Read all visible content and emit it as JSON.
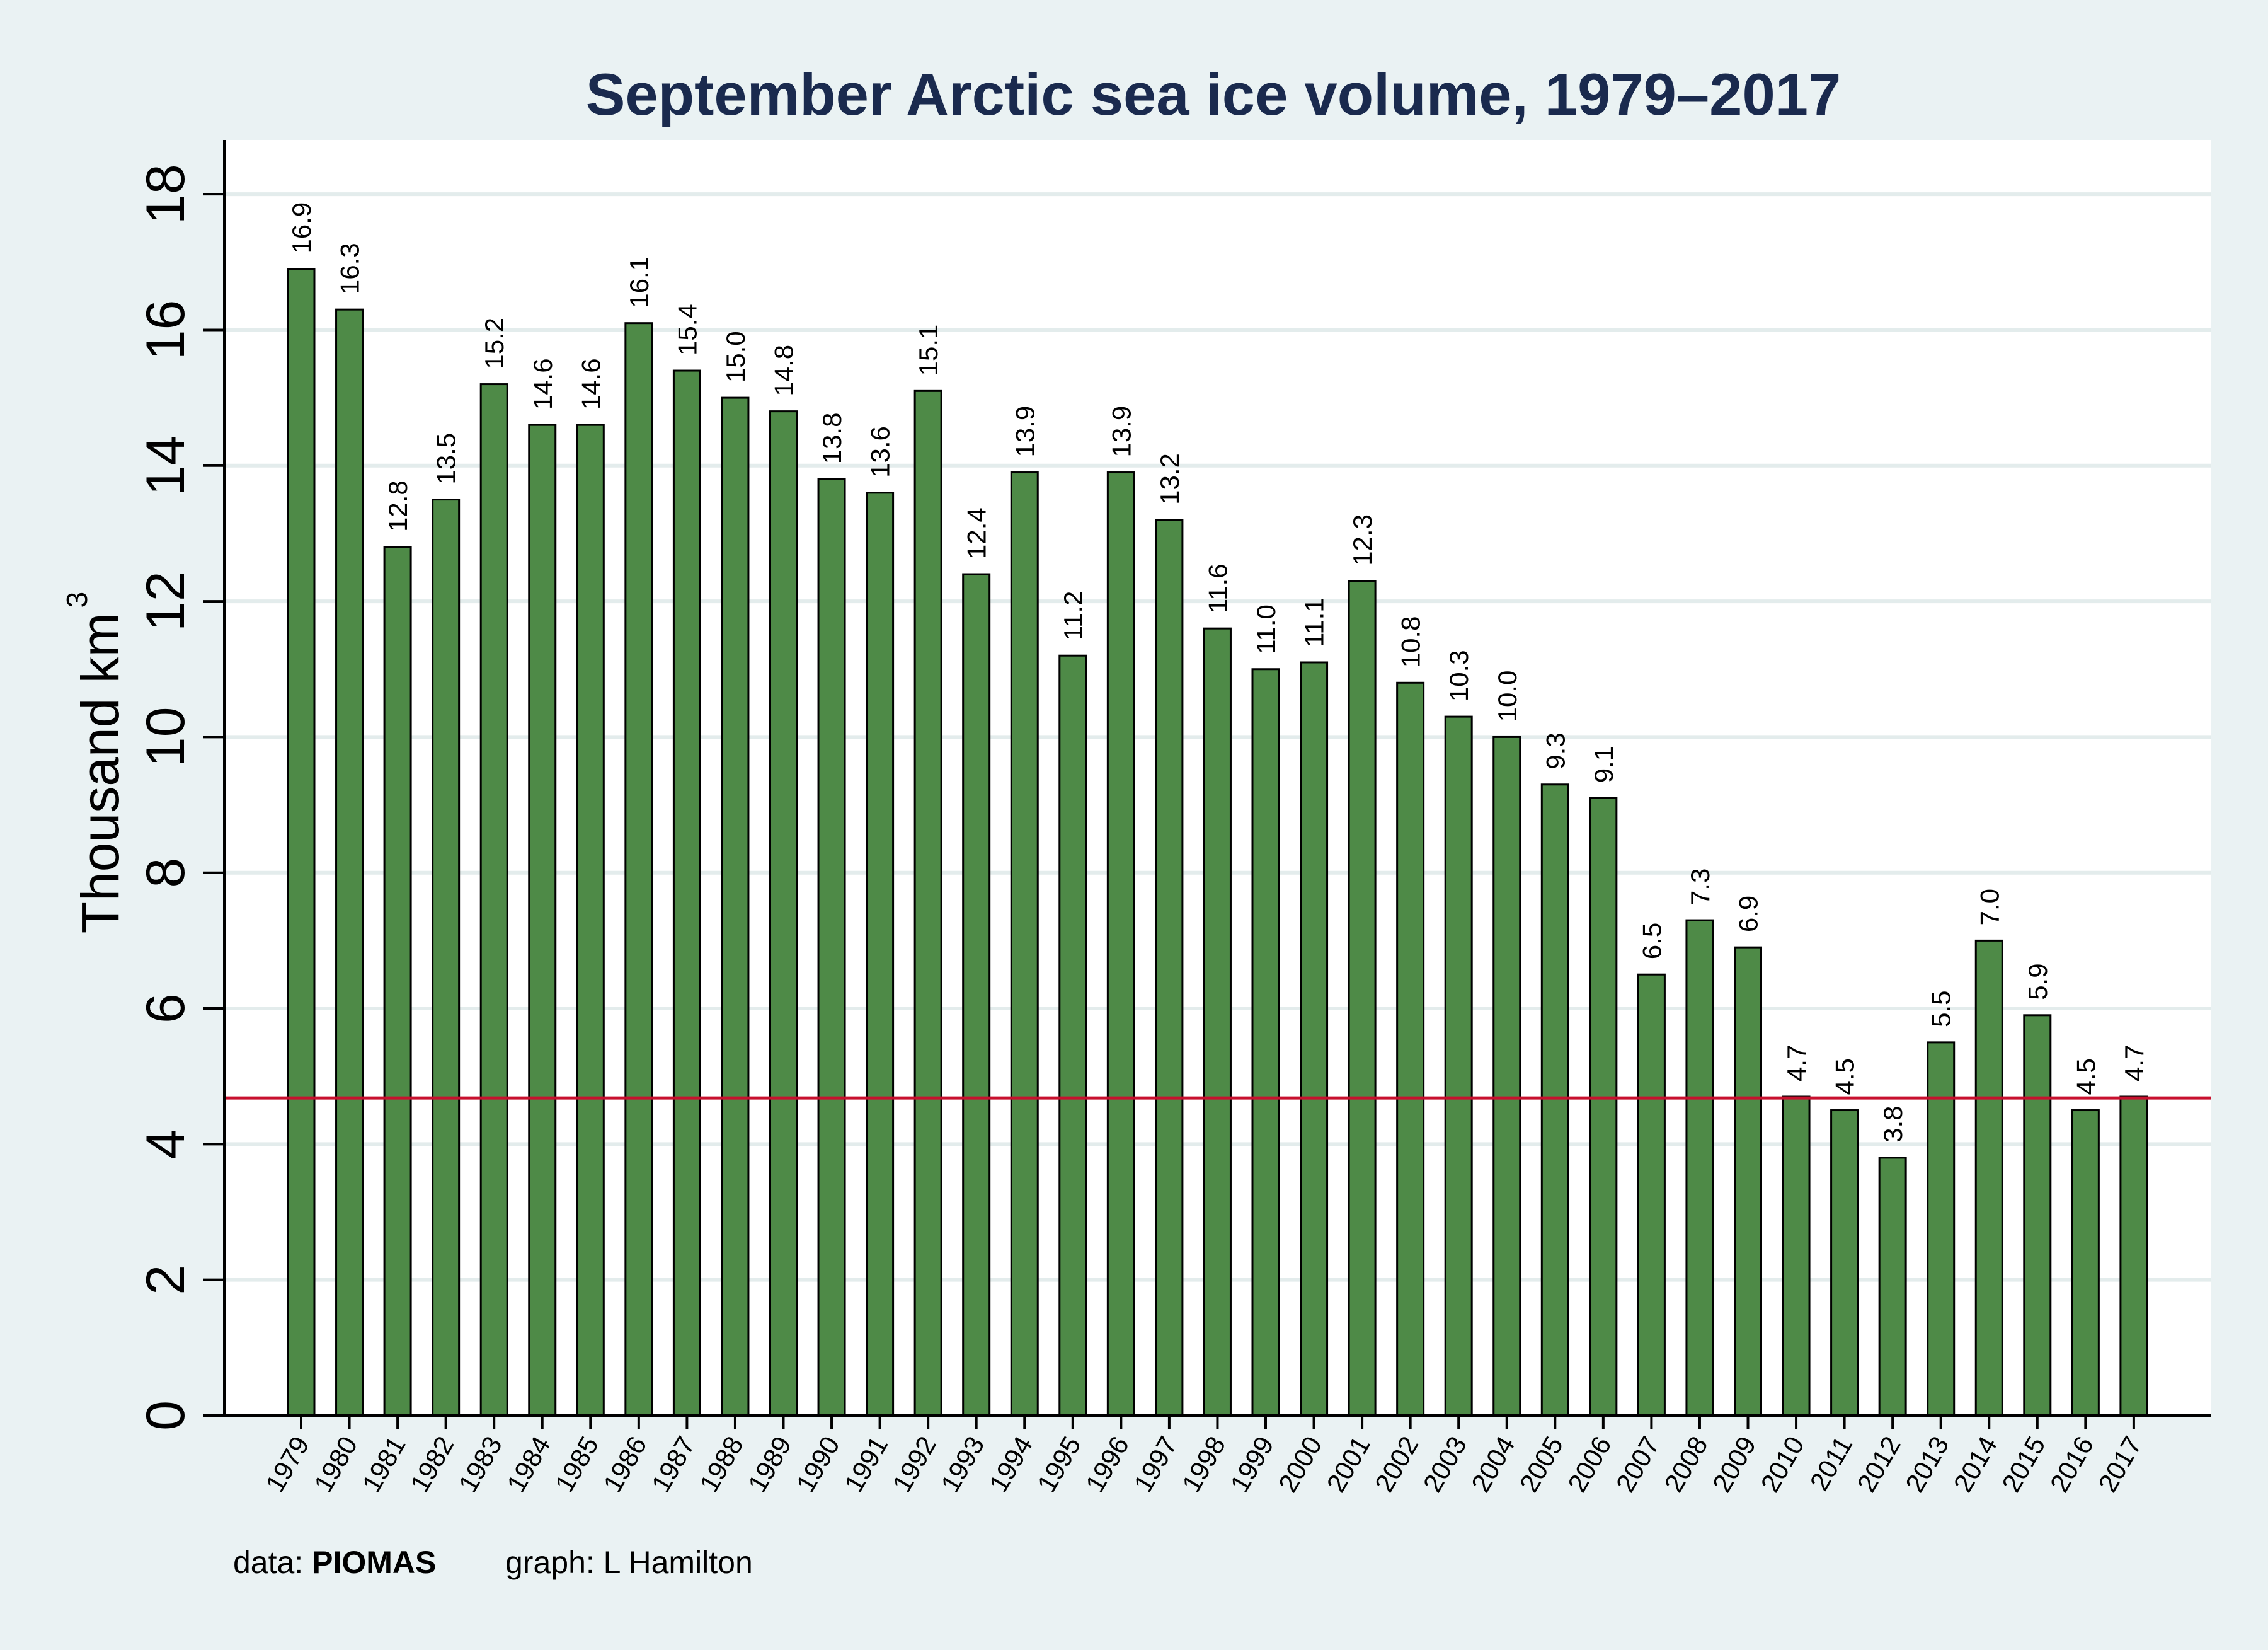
{
  "chart_data": {
    "type": "bar",
    "title": "September Arctic sea ice volume, 1979–2017",
    "ylabel": "Thousand km",
    "ylabel_superscript": "3",
    "xlabel": "",
    "ylim": [
      0,
      18.8
    ],
    "yticks": [
      0,
      2,
      4,
      6,
      8,
      10,
      12,
      14,
      16,
      18
    ],
    "grid": true,
    "bar_color": "#4e8a47",
    "reference_line": {
      "value": 4.68,
      "color": "#c8102e"
    },
    "categories": [
      "1979",
      "1980",
      "1981",
      "1982",
      "1983",
      "1984",
      "1985",
      "1986",
      "1987",
      "1988",
      "1989",
      "1990",
      "1991",
      "1992",
      "1993",
      "1994",
      "1995",
      "1996",
      "1997",
      "1998",
      "1999",
      "2000",
      "2001",
      "2002",
      "2003",
      "2004",
      "2005",
      "2006",
      "2007",
      "2008",
      "2009",
      "2010",
      "2011",
      "2012",
      "2013",
      "2014",
      "2015",
      "2016",
      "2017"
    ],
    "values": [
      16.9,
      16.3,
      12.8,
      13.5,
      15.2,
      14.6,
      14.6,
      16.1,
      15.4,
      15.0,
      14.8,
      13.8,
      13.6,
      15.1,
      12.4,
      13.9,
      11.2,
      13.9,
      13.2,
      11.6,
      11.0,
      11.1,
      12.3,
      10.8,
      10.3,
      10.0,
      9.3,
      9.1,
      6.5,
      7.3,
      6.9,
      4.7,
      4.5,
      3.8,
      5.5,
      7.0,
      5.9,
      4.5,
      4.7
    ],
    "labels": [
      "16.9",
      "16.3",
      "12.8",
      "13.5",
      "15.2",
      "14.6",
      "14.6",
      "16.1",
      "15.4",
      "15.0",
      "14.8",
      "13.8",
      "13.6",
      "15.1",
      "12.4",
      "13.9",
      "11.2",
      "13.9",
      "13.2",
      "11.6",
      "11.0",
      "11.1",
      "12.3",
      "10.8",
      "10.3",
      "10.0",
      "9.3",
      "9.1",
      "6.5",
      "7.3",
      "6.9",
      "4.7",
      "4.5",
      "3.8",
      "5.5",
      "7.0",
      "5.9",
      "4.5",
      "4.7"
    ]
  },
  "footer": {
    "data_prefix": "data: ",
    "data_source": "PIOMAS",
    "graph_credit": "graph: L Hamilton"
  }
}
